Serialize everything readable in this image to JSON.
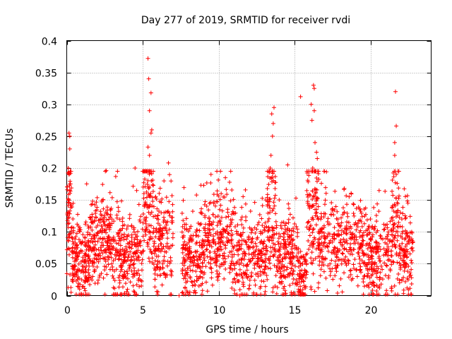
{
  "chart_data": {
    "type": "scatter",
    "title": "Day 277 of 2019, SRMTID for receiver rvdi",
    "xlabel": "GPS time / hours",
    "ylabel": "SRMTID / TECUs",
    "xlim": [
      0,
      24
    ],
    "ylim": [
      0,
      0.4
    ],
    "xticks": [
      0,
      5,
      10,
      15,
      20
    ],
    "xtick_labels": [
      "0",
      "5",
      "10",
      "15",
      "20"
    ],
    "yticks": [
      0,
      0.05,
      0.1,
      0.15,
      0.2,
      0.25,
      0.3,
      0.35,
      0.4
    ],
    "ytick_labels": [
      "0",
      "0.05",
      "0.1",
      "0.15",
      "0.2",
      "0.25",
      "0.3",
      "0.35",
      "0.4"
    ],
    "grid": true,
    "marker": "+",
    "color": "#ff0000",
    "note": "Dense scatter of ~3000 observations spanning 0–22.8 h; values mostly 0–0.15 with spikes near 0.2 h, 5.4 h, 13.5 h, 16 h and 21.7 h.",
    "clusters": [
      {
        "x": [
          0.0,
          0.35
        ],
        "typical": 0.12,
        "spread": 0.07,
        "count": 60
      },
      {
        "x": [
          0.35,
          1.5
        ],
        "typical": 0.055,
        "spread": 0.04,
        "count": 180
      },
      {
        "x": [
          1.5,
          3.0
        ],
        "typical": 0.085,
        "spread": 0.045,
        "count": 210
      },
      {
        "x": [
          3.0,
          5.0
        ],
        "typical": 0.055,
        "spread": 0.045,
        "count": 240
      },
      {
        "x": [
          5.0,
          5.7
        ],
        "typical": 0.14,
        "spread": 0.07,
        "count": 100
      },
      {
        "x": [
          5.7,
          7.0
        ],
        "typical": 0.075,
        "spread": 0.05,
        "count": 160
      },
      {
        "x": [
          7.0,
          7.6
        ],
        "typical": 0.0,
        "spread": 0.0,
        "count": 0
      },
      {
        "x": [
          7.6,
          9.0
        ],
        "typical": 0.06,
        "spread": 0.04,
        "count": 190
      },
      {
        "x": [
          9.0,
          11.0
        ],
        "typical": 0.085,
        "spread": 0.045,
        "count": 240
      },
      {
        "x": [
          11.0,
          13.2
        ],
        "typical": 0.06,
        "spread": 0.045,
        "count": 240
      },
      {
        "x": [
          13.2,
          13.8
        ],
        "typical": 0.12,
        "spread": 0.07,
        "count": 90
      },
      {
        "x": [
          13.8,
          15.2
        ],
        "typical": 0.06,
        "spread": 0.045,
        "count": 180
      },
      {
        "x": [
          15.2,
          15.8
        ],
        "typical": 0.03,
        "spread": 0.025,
        "count": 80
      },
      {
        "x": [
          15.8,
          16.6
        ],
        "typical": 0.13,
        "spread": 0.07,
        "count": 110
      },
      {
        "x": [
          16.6,
          19.5
        ],
        "typical": 0.085,
        "spread": 0.045,
        "count": 300
      },
      {
        "x": [
          19.5,
          21.4
        ],
        "typical": 0.06,
        "spread": 0.045,
        "count": 220
      },
      {
        "x": [
          21.4,
          21.9
        ],
        "typical": 0.1,
        "spread": 0.06,
        "count": 70
      },
      {
        "x": [
          21.9,
          22.8
        ],
        "typical": 0.065,
        "spread": 0.045,
        "count": 120
      }
    ],
    "highlights": [
      {
        "x": 0.15,
        "y": 0.255
      },
      {
        "x": 0.2,
        "y": 0.25
      },
      {
        "x": 0.2,
        "y": 0.23
      },
      {
        "x": 0.1,
        "y": 0.2
      },
      {
        "x": 0.15,
        "y": 0.19
      },
      {
        "x": 0.2,
        "y": 0.175
      },
      {
        "x": 5.35,
        "y": 0.372
      },
      {
        "x": 5.4,
        "y": 0.34
      },
      {
        "x": 5.55,
        "y": 0.318
      },
      {
        "x": 5.45,
        "y": 0.29
      },
      {
        "x": 5.6,
        "y": 0.26
      },
      {
        "x": 5.55,
        "y": 0.255
      },
      {
        "x": 5.35,
        "y": 0.233
      },
      {
        "x": 5.45,
        "y": 0.22
      },
      {
        "x": 6.7,
        "y": 0.208
      },
      {
        "x": 4.5,
        "y": 0.2
      },
      {
        "x": 2.6,
        "y": 0.196
      },
      {
        "x": 9.5,
        "y": 0.19
      },
      {
        "x": 10.8,
        "y": 0.195
      },
      {
        "x": 13.65,
        "y": 0.295
      },
      {
        "x": 13.5,
        "y": 0.285
      },
      {
        "x": 13.6,
        "y": 0.27
      },
      {
        "x": 13.55,
        "y": 0.25
      },
      {
        "x": 13.45,
        "y": 0.22
      },
      {
        "x": 13.4,
        "y": 0.2
      },
      {
        "x": 14.55,
        "y": 0.205
      },
      {
        "x": 15.4,
        "y": 0.312
      },
      {
        "x": 16.25,
        "y": 0.33
      },
      {
        "x": 16.3,
        "y": 0.325
      },
      {
        "x": 16.1,
        "y": 0.3
      },
      {
        "x": 16.3,
        "y": 0.29
      },
      {
        "x": 16.15,
        "y": 0.275
      },
      {
        "x": 16.35,
        "y": 0.24
      },
      {
        "x": 16.45,
        "y": 0.225
      },
      {
        "x": 16.5,
        "y": 0.215
      },
      {
        "x": 16.2,
        "y": 0.2
      },
      {
        "x": 21.65,
        "y": 0.32
      },
      {
        "x": 21.7,
        "y": 0.266
      },
      {
        "x": 21.6,
        "y": 0.24
      },
      {
        "x": 21.6,
        "y": 0.22
      },
      {
        "x": 21.65,
        "y": 0.195
      },
      {
        "x": 21.7,
        "y": 0.19
      },
      {
        "x": 7.4,
        "y": 0.0
      },
      {
        "x": 11.4,
        "y": 0.0
      },
      {
        "x": 15.55,
        "y": 0.003
      }
    ]
  }
}
